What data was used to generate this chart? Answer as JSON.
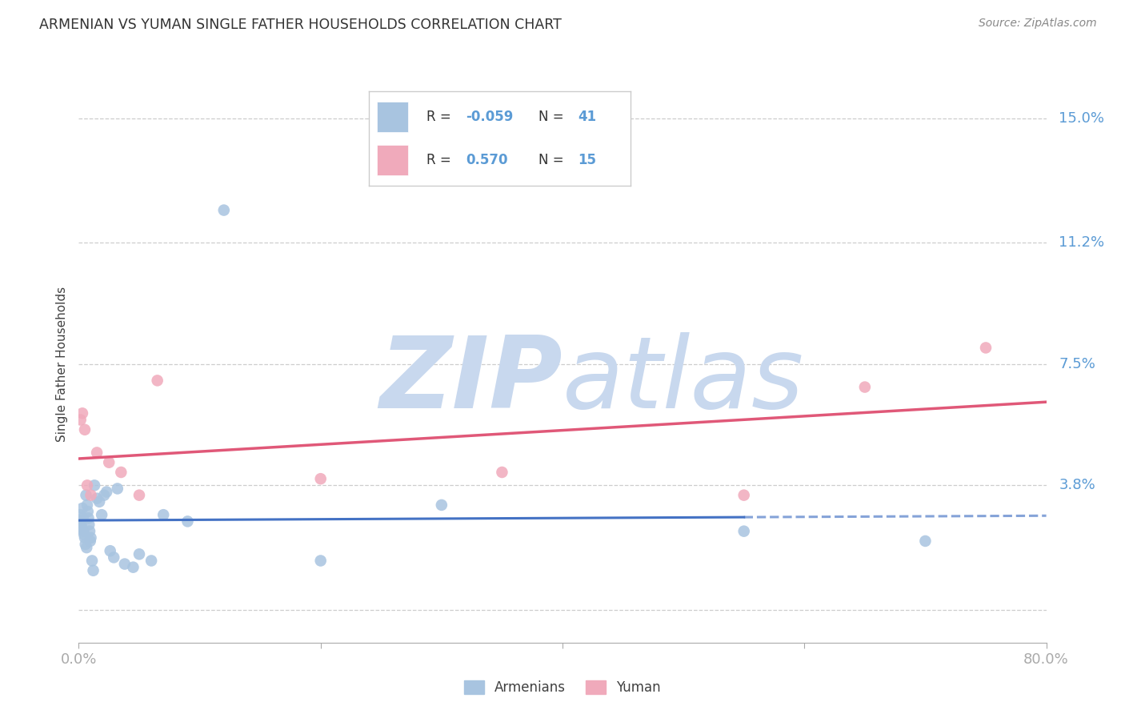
{
  "title": "ARMENIAN VS YUMAN SINGLE FATHER HOUSEHOLDS CORRELATION CHART",
  "source": "Source: ZipAtlas.com",
  "ylabel": "Single Father Households",
  "xlim": [
    0.0,
    80.0
  ],
  "ylim": [
    -1.0,
    16.0
  ],
  "yticks": [
    0.0,
    3.8,
    7.5,
    11.2,
    15.0
  ],
  "ytick_labels": [
    "",
    "3.8%",
    "7.5%",
    "11.2%",
    "15.0%"
  ],
  "armenian_x": [
    0.1,
    0.15,
    0.2,
    0.25,
    0.3,
    0.35,
    0.4,
    0.45,
    0.5,
    0.55,
    0.6,
    0.65,
    0.7,
    0.75,
    0.8,
    0.85,
    0.9,
    0.95,
    1.0,
    1.1,
    1.2,
    1.3,
    1.5,
    1.7,
    1.9,
    2.1,
    2.3,
    2.6,
    2.9,
    3.2,
    3.8,
    4.5,
    5.0,
    6.0,
    7.0,
    9.0,
    12.0,
    20.0,
    30.0,
    55.0,
    70.0
  ],
  "armenian_y": [
    2.9,
    2.7,
    2.6,
    2.5,
    3.1,
    2.8,
    2.4,
    2.3,
    2.2,
    2.0,
    3.5,
    1.9,
    3.2,
    3.0,
    2.8,
    2.6,
    2.4,
    2.1,
    2.2,
    1.5,
    1.2,
    3.8,
    3.4,
    3.3,
    2.9,
    3.5,
    3.6,
    1.8,
    1.6,
    3.7,
    1.4,
    1.3,
    1.7,
    1.5,
    2.9,
    2.7,
    12.2,
    1.5,
    3.2,
    2.4,
    2.1
  ],
  "yuman_x": [
    0.15,
    0.3,
    0.5,
    0.7,
    1.0,
    1.5,
    2.5,
    3.5,
    5.0,
    6.5,
    20.0,
    35.0,
    55.0,
    65.0,
    75.0
  ],
  "yuman_y": [
    5.8,
    6.0,
    5.5,
    3.8,
    3.5,
    4.8,
    4.5,
    4.2,
    3.5,
    7.0,
    4.0,
    4.2,
    3.5,
    6.8,
    8.0
  ],
  "armenian_color": "#A8C4E0",
  "yuman_color": "#F0AABB",
  "armenian_line_color": "#4472C4",
  "yuman_line_color": "#E05878",
  "r_armenian": -0.059,
  "n_armenian": 41,
  "r_yuman": 0.57,
  "n_yuman": 15,
  "background_color": "#ffffff",
  "grid_color": "#c8c8c8",
  "tick_color": "#5B9BD5",
  "title_color": "#333333",
  "watermark_zip_color": "#c8d8ee",
  "watermark_atlas_color": "#c8d8ee",
  "legend_border_color": "#cccccc",
  "source_color": "#888888"
}
